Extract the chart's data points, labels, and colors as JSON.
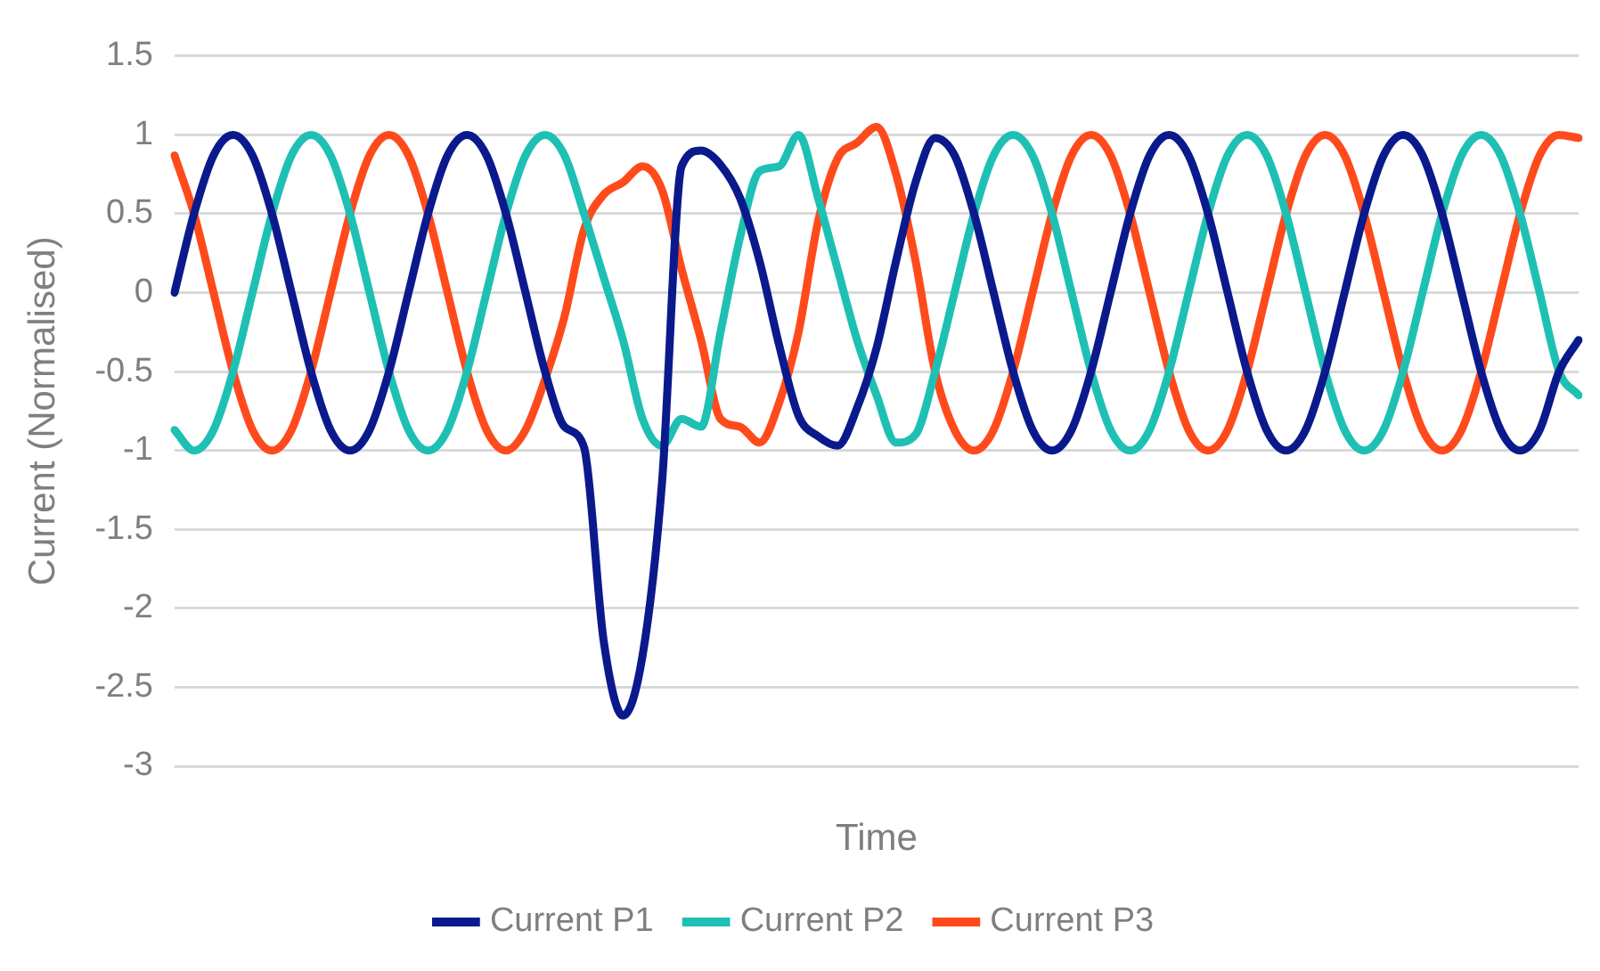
{
  "chart_data": {
    "type": "line",
    "xlabel": "Time",
    "ylabel": "Current (Normalised)",
    "categories": [
      null,
      null,
      null,
      null,
      null,
      null,
      null,
      null,
      null,
      null,
      null,
      null,
      null,
      null,
      null,
      null,
      null,
      null,
      null,
      null,
      null,
      null,
      null,
      null,
      null,
      null,
      null,
      null,
      null,
      null,
      null,
      null,
      null,
      null,
      null,
      null,
      null,
      null,
      null,
      null,
      null,
      null,
      null,
      null,
      null,
      null,
      null,
      null,
      null,
      null,
      null,
      null,
      null,
      null,
      null,
      null,
      null,
      null,
      null,
      null,
      null,
      null,
      null,
      null,
      null,
      null,
      null,
      null,
      null,
      null,
      null,
      null,
      null
    ],
    "series": [
      {
        "name": "Current P1",
        "color": "#0a1a8c",
        "values": [
          0,
          0.5,
          0.87,
          1,
          0.87,
          0.5,
          0,
          -0.5,
          -0.87,
          -1,
          -0.87,
          -0.5,
          0,
          0.5,
          0.87,
          1,
          0.87,
          0.5,
          0,
          -0.5,
          -0.85,
          -0.98,
          -2.2,
          -2.68,
          -2.3,
          -1.2,
          0.8,
          0.9,
          0.81,
          0.6,
          0.2,
          -0.33,
          -0.78,
          -0.91,
          -0.97,
          -0.73,
          -0.35,
          0.2,
          0.7,
          0.98,
          0.87,
          0.5,
          0,
          -0.5,
          -0.87,
          -1,
          -0.87,
          -0.5,
          0,
          0.5,
          0.87,
          1,
          0.87,
          0.5,
          0,
          -0.5,
          -0.87,
          -1,
          -0.87,
          -0.5,
          0,
          0.5,
          0.87,
          1,
          0.87,
          0.5,
          0,
          -0.5,
          -0.87,
          -1,
          -0.87,
          -0.5,
          -0.3
        ]
      },
      {
        "name": "Current P2",
        "color": "#1fc0b4",
        "values": [
          -0.87,
          -1,
          -0.87,
          -0.5,
          0,
          0.5,
          0.87,
          1,
          0.87,
          0.5,
          0,
          -0.5,
          -0.87,
          -1,
          -0.87,
          -0.5,
          0,
          0.5,
          0.87,
          1,
          0.87,
          0.5,
          0.1,
          -0.3,
          -0.8,
          -0.97,
          -0.8,
          -0.85,
          -0.25,
          0.35,
          0.77,
          0.8,
          1,
          0.6,
          0.15,
          -0.3,
          -0.65,
          -0.95,
          -0.9,
          -0.5,
          0,
          0.5,
          0.87,
          1,
          0.87,
          0.5,
          0,
          -0.5,
          -0.87,
          -1,
          -0.87,
          -0.5,
          0,
          0.5,
          0.87,
          1,
          0.87,
          0.5,
          0,
          -0.5,
          -0.87,
          -1,
          -0.87,
          -0.5,
          0,
          0.5,
          0.87,
          1,
          0.87,
          0.5,
          0,
          -0.5,
          -0.65
        ]
      },
      {
        "name": "Current P3",
        "color": "#ff4a1c",
        "values": [
          0.87,
          0.5,
          0,
          -0.5,
          -0.87,
          -1,
          -0.87,
          -0.5,
          0,
          0.5,
          0.87,
          1,
          0.87,
          0.5,
          0,
          -0.5,
          -0.87,
          -1,
          -0.87,
          -0.55,
          -0.15,
          0.4,
          0.62,
          0.7,
          0.8,
          0.65,
          0.15,
          -0.3,
          -0.8,
          -0.85,
          -0.95,
          -0.7,
          -0.25,
          0.45,
          0.85,
          0.95,
          1.05,
          0.75,
          0.2,
          -0.5,
          -0.87,
          -1,
          -0.87,
          -0.5,
          0,
          0.5,
          0.87,
          1,
          0.87,
          0.5,
          0,
          -0.5,
          -0.87,
          -1,
          -0.87,
          -0.5,
          0,
          0.5,
          0.87,
          1,
          0.87,
          0.5,
          0,
          -0.5,
          -0.87,
          -1,
          -0.87,
          -0.5,
          0,
          0.5,
          0.87,
          1,
          0.98
        ]
      }
    ],
    "ylim": [
      -3,
      1.5
    ],
    "yticks": [
      -3,
      -2.5,
      -2,
      -1.5,
      -1,
      -0.5,
      0,
      0.5,
      1,
      1.5
    ],
    "grid": "y",
    "legend": "bottom",
    "marker": "none",
    "line_style": "solid"
  }
}
